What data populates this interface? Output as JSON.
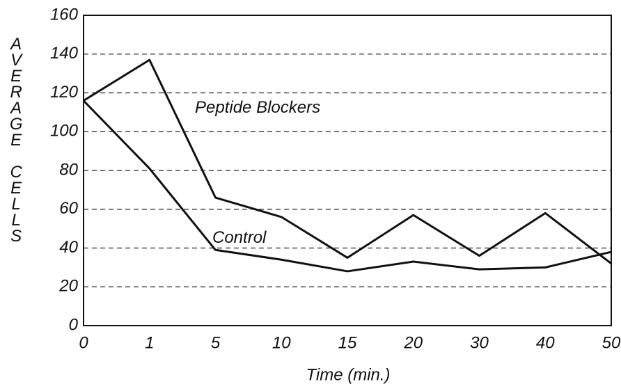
{
  "chart_data": {
    "type": "line",
    "x_label": "Time (min.)",
    "y_label": "AVERAGE CELLS",
    "categories": [
      "0",
      "1",
      "5",
      "10",
      "15",
      "20",
      "30",
      "40",
      "50"
    ],
    "series": [
      {
        "name": "Peptide Blockers",
        "color": "#111111",
        "values": [
          116,
          137,
          66,
          56,
          35,
          57,
          36,
          58,
          32
        ]
      },
      {
        "name": "Control",
        "color": "#111111",
        "values": [
          116,
          81,
          39,
          34,
          28,
          33,
          29,
          30,
          38
        ]
      }
    ],
    "ylim": [
      0,
      160
    ],
    "yticks": [
      0,
      20,
      40,
      60,
      80,
      100,
      120,
      140,
      160
    ],
    "grid": true
  }
}
